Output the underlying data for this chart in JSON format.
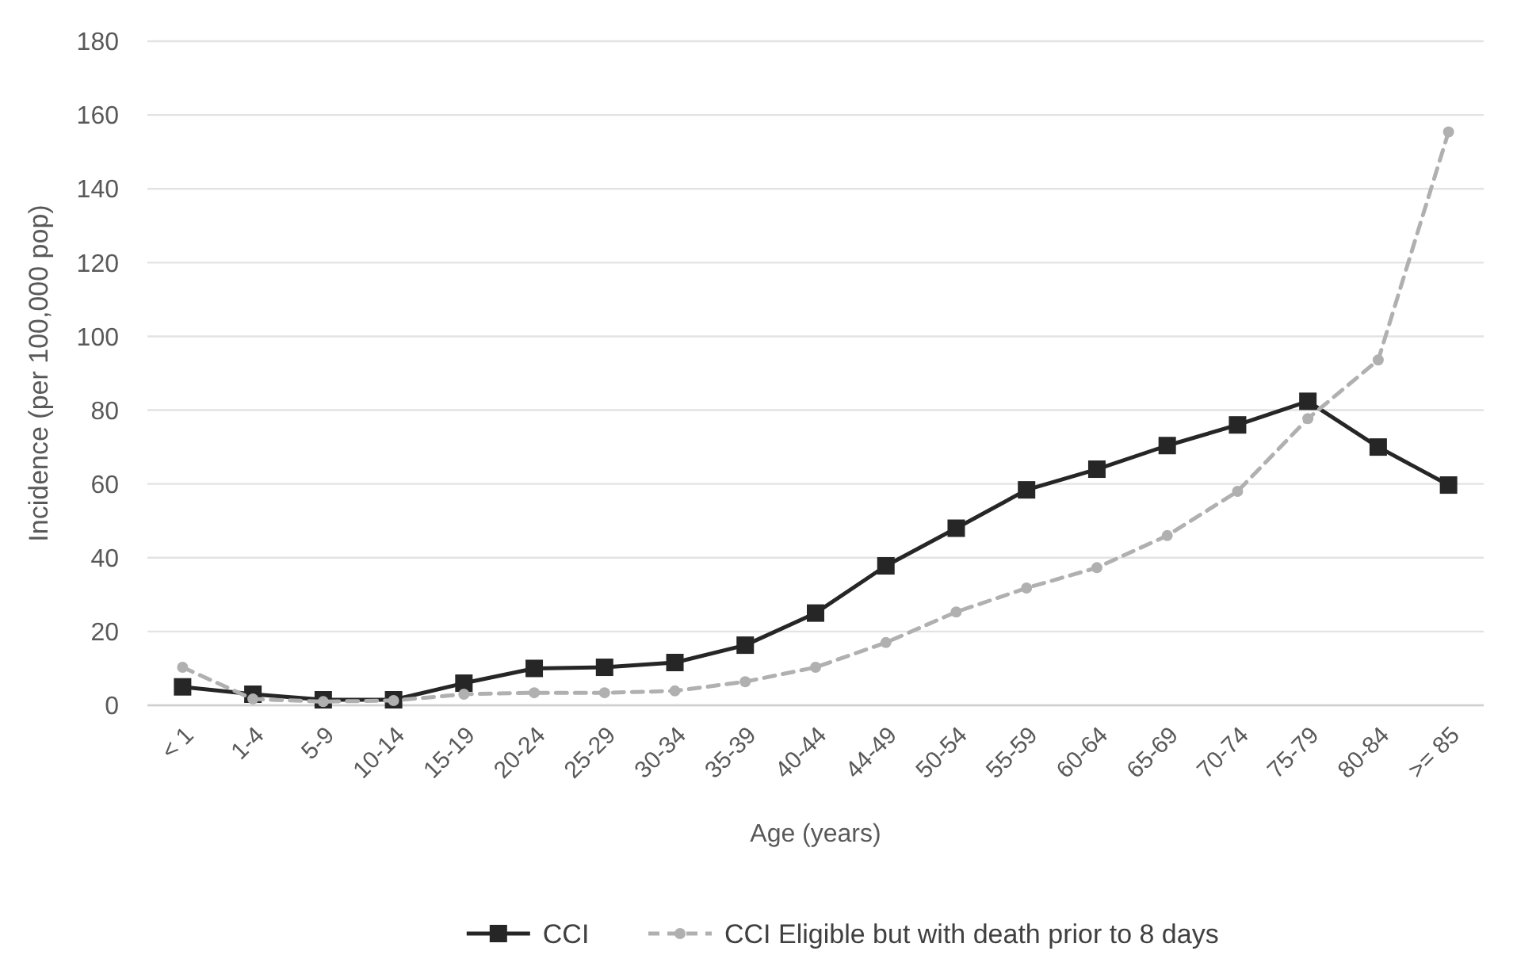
{
  "chart_data": {
    "type": "line",
    "xlabel": "Age (years)",
    "ylabel": "Incidence (per 100,000 pop)",
    "categories": [
      "< 1",
      "1-4",
      "5-9",
      "10-14",
      "15-19",
      "20-24",
      "25-29",
      "30-34",
      "35-39",
      "40-44",
      "44-49",
      "50-54",
      "55-59",
      "60-64",
      "65-69",
      "70-74",
      "75-79",
      "80-84",
      ">= 85"
    ],
    "ylim": [
      0,
      180
    ],
    "yticks": [
      0,
      20,
      40,
      60,
      80,
      100,
      120,
      140,
      160,
      180
    ],
    "grid": "y",
    "legend": "bottom",
    "series": [
      {
        "name": "CCI",
        "color": "#262626",
        "marker": "square",
        "line_style": "solid",
        "values": [
          5,
          3,
          1.5,
          1.5,
          6,
          10,
          10.3,
          11.6,
          16.3,
          25,
          37.8,
          48,
          58.4,
          64,
          70.4,
          76,
          82.4,
          70,
          59.7
        ]
      },
      {
        "name": "CCI Eligible but with death prior to 8 days",
        "color": "#b0b0b0",
        "marker": "circle",
        "line_style": "dashed",
        "values": [
          10.3,
          1.7,
          1,
          1.3,
          3,
          3.4,
          3.4,
          3.9,
          6.4,
          10.3,
          17,
          25.3,
          31.8,
          37.3,
          46,
          58,
          77.7,
          93.6,
          155.4
        ]
      }
    ]
  }
}
